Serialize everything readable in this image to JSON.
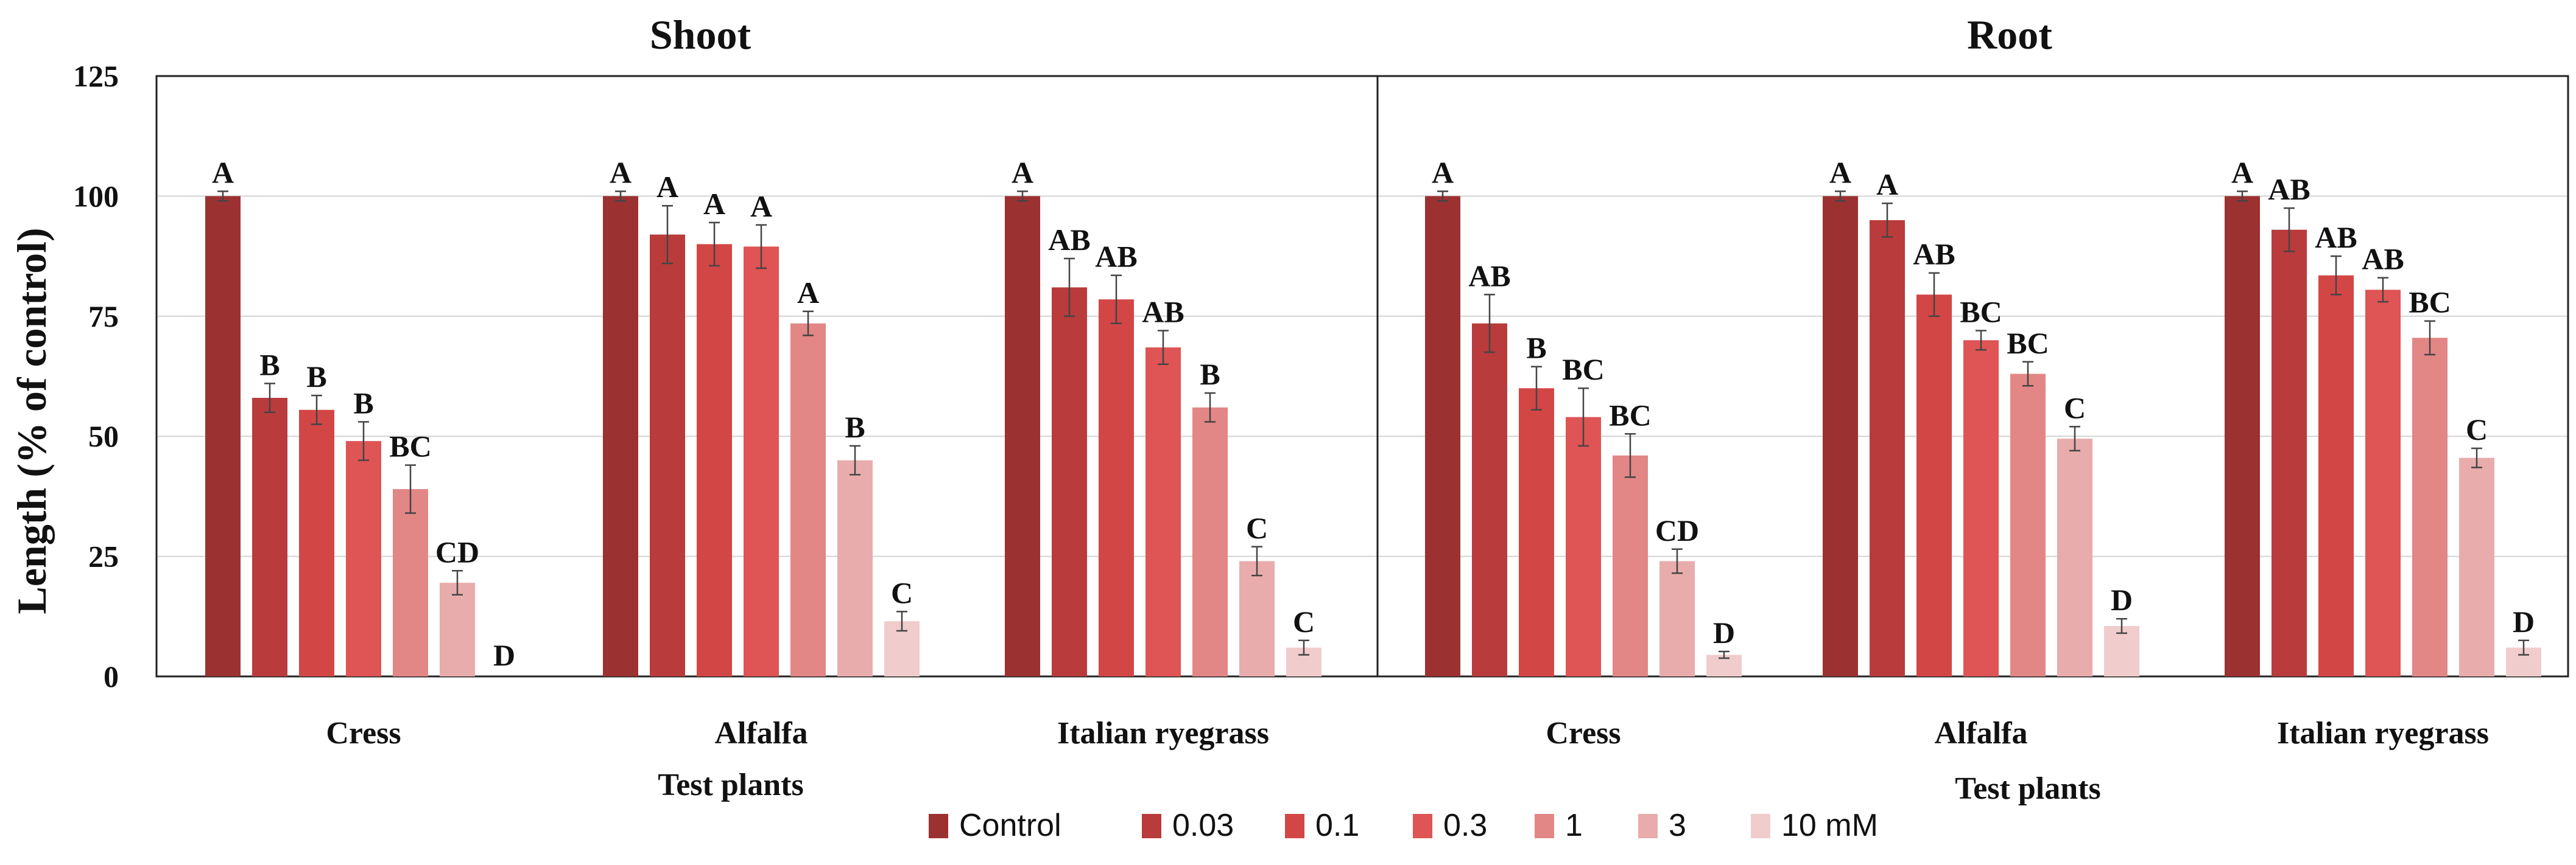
{
  "figure": {
    "ylabel": "Length (% of control)",
    "xlabel": "Test plants",
    "legend_entries": [
      "Control",
      "0.03",
      "0.1",
      "0.3",
      "1",
      "3",
      "10 mM"
    ],
    "series_colors": [
      "#9b3131",
      "#b93b3b",
      "#d34646",
      "#df5454",
      "#e28686",
      "#e9acac",
      "#f1cccc"
    ]
  },
  "chart_data": [
    {
      "type": "bar",
      "title": "Shoot",
      "xlabel": "Test plants",
      "ylabel": "Length (% of control)",
      "categories": [
        "Cress",
        "Alfalfa",
        "Italian ryegrass"
      ],
      "ylim": [
        0,
        125
      ],
      "yticks": [
        0,
        25,
        50,
        75,
        100,
        125
      ],
      "grid": true,
      "legend": "bottom",
      "series": [
        {
          "name": "Control",
          "values": [
            100,
            100,
            100
          ],
          "errors": [
            1,
            1,
            1
          ],
          "labels": [
            "A",
            "A",
            "A"
          ]
        },
        {
          "name": "0.03",
          "values": [
            58,
            92,
            81
          ],
          "errors": [
            3,
            6,
            6
          ],
          "labels": [
            "B",
            "A",
            "AB"
          ]
        },
        {
          "name": "0.1",
          "values": [
            55.5,
            90,
            78.5
          ],
          "errors": [
            3,
            4.5,
            5
          ],
          "labels": [
            "B",
            "A",
            "AB"
          ]
        },
        {
          "name": "0.3",
          "values": [
            49,
            89.5,
            68.5
          ],
          "errors": [
            4,
            4.5,
            3.5
          ],
          "labels": [
            "B",
            "A",
            "AB"
          ]
        },
        {
          "name": "1",
          "values": [
            39,
            73.5,
            56
          ],
          "errors": [
            5,
            2.5,
            3
          ],
          "labels": [
            "BC",
            "A",
            "B"
          ]
        },
        {
          "name": "3",
          "values": [
            19.5,
            45,
            24
          ],
          "errors": [
            2.5,
            3,
            3
          ],
          "labels": [
            "CD",
            "B",
            "C"
          ]
        },
        {
          "name": "10 mM",
          "values": [
            0,
            11.5,
            6
          ],
          "errors": [
            0,
            2,
            1.5
          ],
          "labels": [
            "D",
            "C",
            "C"
          ]
        }
      ]
    },
    {
      "type": "bar",
      "title": "Root",
      "xlabel": "Test plants",
      "categories": [
        "Cress",
        "Alfalfa",
        "Italian ryegrass"
      ],
      "ylim": [
        0,
        125
      ],
      "grid": true,
      "legend": "bottom",
      "series": [
        {
          "name": "Control",
          "values": [
            100,
            100,
            100
          ],
          "errors": [
            1,
            1,
            1
          ],
          "labels": [
            "A",
            "A",
            "A"
          ]
        },
        {
          "name": "0.03",
          "values": [
            73.5,
            95,
            93
          ],
          "errors": [
            6,
            3.5,
            4.5
          ],
          "labels": [
            "AB",
            "A",
            "AB"
          ]
        },
        {
          "name": "0.1",
          "values": [
            60,
            79.5,
            83.5
          ],
          "errors": [
            4.5,
            4.5,
            4
          ],
          "labels": [
            "B",
            "AB",
            "AB"
          ]
        },
        {
          "name": "0.3",
          "values": [
            54,
            70,
            80.5
          ],
          "errors": [
            6,
            2,
            2.5
          ],
          "labels": [
            "BC",
            "BC",
            "AB"
          ]
        },
        {
          "name": "1",
          "values": [
            46,
            63,
            70.5
          ],
          "errors": [
            4.5,
            2.5,
            3.5
          ],
          "labels": [
            "BC",
            "BC",
            "BC"
          ]
        },
        {
          "name": "3",
          "values": [
            24,
            49.5,
            45.5
          ],
          "errors": [
            2.5,
            2.5,
            2
          ],
          "labels": [
            "CD",
            "C",
            "C"
          ]
        },
        {
          "name": "10 mM",
          "values": [
            4.5,
            10.5,
            6
          ],
          "errors": [
            0.7,
            1.5,
            1.5
          ],
          "labels": [
            "D",
            "D",
            "D"
          ]
        }
      ]
    }
  ]
}
